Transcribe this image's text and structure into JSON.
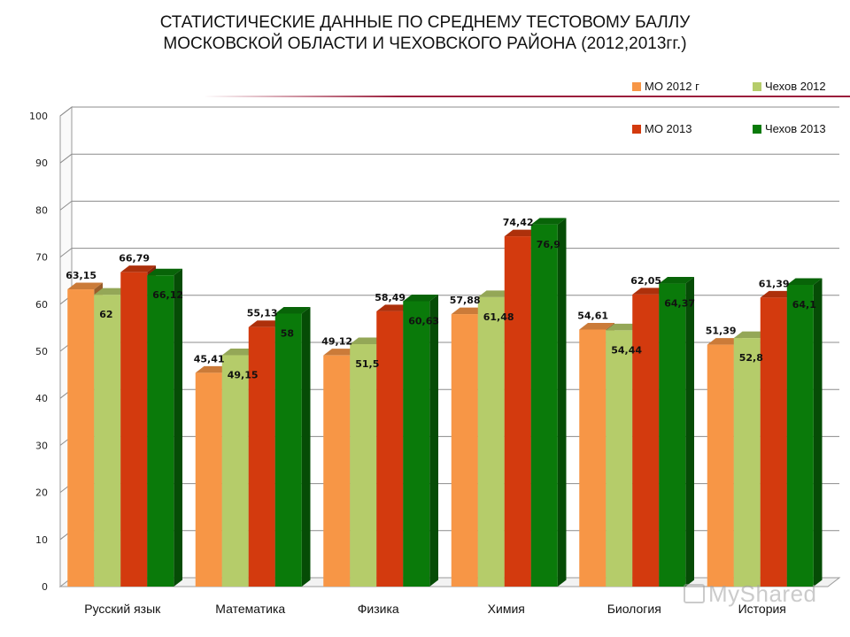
{
  "title": {
    "line1": "СТАТИСТИЧЕСКИЕ ДАННЫЕ ПО СРЕДНЕМУ ТЕСТОВОМУ БАЛЛУ",
    "line2": "МОСКОВСКОЙ ОБЛАСТИ И ЧЕХОВСКОГО РАЙОНА (2012,2013гг.)"
  },
  "watermark": "MyShared",
  "chart_data": {
    "type": "bar",
    "categories": [
      "Русский язык",
      "Математика",
      "Физика",
      "Химия",
      "Биология",
      "История"
    ],
    "series": [
      {
        "name": "МО 2012 г",
        "color": "#f79646",
        "values": [
          63.15,
          45.41,
          49.12,
          57.88,
          54.61,
          51.39
        ],
        "labels": [
          "63,15",
          "45,41",
          "49,12",
          "57,88",
          "54,61",
          "51,39"
        ]
      },
      {
        "name": "Чехов 2012",
        "color": "#b5cc6a",
        "values": [
          62,
          49.15,
          51.5,
          61.48,
          54.44,
          52.8
        ],
        "labels": [
          "62",
          "49,15",
          "51,5",
          "61,48",
          "54,44",
          "52,8"
        ]
      },
      {
        "name": "МО 2013",
        "color": "#d33a0e",
        "values": [
          66.79,
          55.13,
          58.49,
          74.42,
          62.05,
          61.39
        ],
        "labels": [
          "66,79",
          "55,13",
          "58,49",
          "74,42",
          "62,05",
          "61,39"
        ]
      },
      {
        "name": "Чехов 2013",
        "color": "#0a7a0a",
        "values": [
          66.12,
          58,
          60.63,
          76.9,
          64.37,
          64.1
        ],
        "labels": [
          "66,12",
          "58",
          "60,63",
          "76,9",
          "64,37",
          "64,1"
        ]
      }
    ],
    "ylim": [
      0,
      100
    ],
    "yticks": [
      0,
      10,
      20,
      30,
      40,
      50,
      60,
      70,
      80,
      90,
      100
    ],
    "grid": true,
    "legend": "top-right",
    "style": "3d-column"
  }
}
